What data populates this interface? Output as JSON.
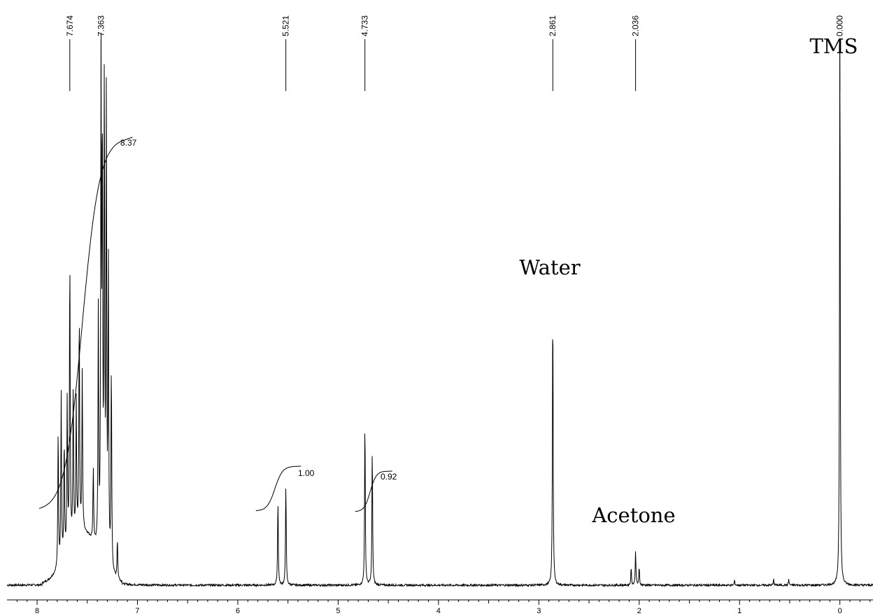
{
  "chart_data": {
    "type": "line",
    "title": "",
    "xlabel": "",
    "ylabel": "",
    "x_reversed": true,
    "xlim": [
      8.3,
      -0.33
    ],
    "x_ticks": [
      8,
      7,
      6,
      5,
      4,
      3,
      2,
      1,
      0
    ],
    "x_tick_labels": [
      "8",
      "7",
      "6",
      "5",
      "4",
      "3",
      "2",
      "1",
      "0"
    ],
    "grid": false,
    "peak_labels": [
      "7.674",
      "7.363",
      "5.521",
      "4.733",
      "2.861",
      "2.036",
      "0.000"
    ],
    "peak_positions_ppm": [
      7.674,
      7.363,
      5.521,
      4.733,
      2.861,
      2.036,
      0.0
    ],
    "annotations": [
      {
        "text": "TMS",
        "ppm": 0.0
      },
      {
        "text": "Water",
        "ppm": 2.861
      },
      {
        "text": "Acetone",
        "ppm": 2.036
      }
    ],
    "integrals": [
      {
        "label": "8.37",
        "from_ppm": 7.98,
        "to_ppm": 7.12
      },
      {
        "label": "1.00",
        "from_ppm": 5.82,
        "to_ppm": 5.44
      },
      {
        "label": "0.92",
        "from_ppm": 4.83,
        "to_ppm": 4.53
      }
    ],
    "peaks": [
      {
        "ppm": 7.79,
        "height": 0.24
      },
      {
        "ppm": 7.76,
        "height": 0.29
      },
      {
        "ppm": 7.73,
        "height": 0.2
      },
      {
        "ppm": 7.7,
        "height": 0.26
      },
      {
        "ppm": 7.674,
        "height": 0.51
      },
      {
        "ppm": 7.64,
        "height": 0.27
      },
      {
        "ppm": 7.61,
        "height": 0.23
      },
      {
        "ppm": 7.58,
        "height": 0.39
      },
      {
        "ppm": 7.55,
        "height": 0.28
      },
      {
        "ppm": 7.44,
        "height": 0.13
      },
      {
        "ppm": 7.39,
        "height": 0.41
      },
      {
        "ppm": 7.363,
        "height": 0.83
      },
      {
        "ppm": 7.35,
        "height": 0.72
      },
      {
        "ppm": 7.33,
        "height": 0.84
      },
      {
        "ppm": 7.31,
        "height": 0.78
      },
      {
        "ppm": 7.29,
        "height": 0.53
      },
      {
        "ppm": 7.26,
        "height": 0.36
      },
      {
        "ppm": 7.2,
        "height": 0.07
      },
      {
        "ppm": 5.6,
        "height": 0.15
      },
      {
        "ppm": 5.521,
        "height": 0.18
      },
      {
        "ppm": 4.733,
        "height": 0.29
      },
      {
        "ppm": 4.66,
        "height": 0.24
      },
      {
        "ppm": 2.861,
        "height": 0.5
      },
      {
        "ppm": 2.08,
        "height": 0.03
      },
      {
        "ppm": 2.036,
        "height": 0.06
      },
      {
        "ppm": 2.0,
        "height": 0.03
      },
      {
        "ppm": 1.05,
        "height": 0.008
      },
      {
        "ppm": 0.66,
        "height": 0.01
      },
      {
        "ppm": 0.51,
        "height": 0.01
      },
      {
        "ppm": 0.0,
        "height": 1.0
      }
    ]
  }
}
